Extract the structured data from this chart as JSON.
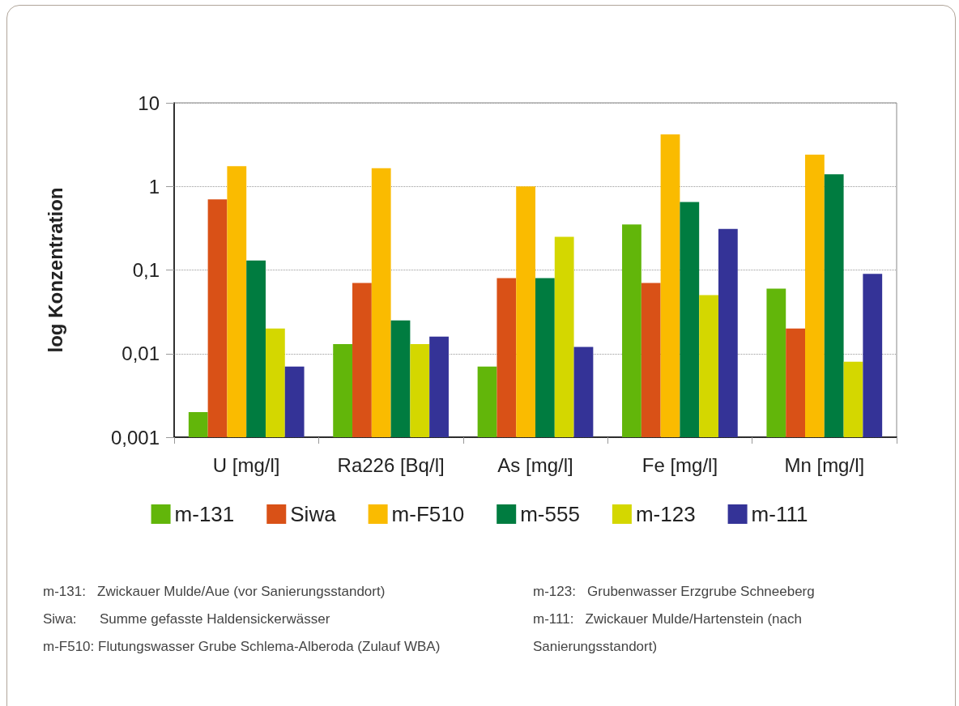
{
  "chart_data": {
    "type": "bar",
    "ylabel": "log Konzentration",
    "categories": [
      "U [mg/l]",
      "Ra226 [Bq/l]",
      "As [mg/l]",
      "Fe [mg/l]",
      "Mn [mg/l]"
    ],
    "series": [
      {
        "name": "m-131",
        "color": "#62b60a",
        "values": [
          0.002,
          0.013,
          0.007,
          0.35,
          0.06
        ]
      },
      {
        "name": "Siwa",
        "color": "#d95117",
        "values": [
          0.7,
          0.07,
          0.08,
          0.07,
          0.02
        ]
      },
      {
        "name": "m-F510",
        "color": "#fabb00",
        "values": [
          1.75,
          1.65,
          1.0,
          4.2,
          2.4
        ]
      },
      {
        "name": "m-555",
        "color": "#007c40",
        "values": [
          0.13,
          0.025,
          0.08,
          0.65,
          1.4
        ]
      },
      {
        "name": "m-123",
        "color": "#d4d700",
        "values": [
          0.02,
          0.013,
          0.25,
          0.05,
          0.008
        ]
      },
      {
        "name": "m-111",
        "color": "#343397",
        "values": [
          0.007,
          0.016,
          0.012,
          0.31,
          0.09
        ]
      }
    ],
    "log": true,
    "ylim": [
      0.001,
      10
    ],
    "yticks": [
      {
        "value": 0.001,
        "label": "0,001"
      },
      {
        "value": 0.01,
        "label": "0,01"
      },
      {
        "value": 0.1,
        "label": "0,1"
      },
      {
        "value": 1,
        "label": "1"
      },
      {
        "value": 10,
        "label": "10"
      }
    ],
    "grid": "y",
    "legend": "bottom",
    "annotations": [
      "m-131:   Zwickauer Mulde/Aue (vor Sanierungsstandort)",
      "Siwa:      Summe gefasste Haldensickerwässer",
      "m-F510: Flutungswasser Grube Schlema-Alberoda (Zulauf WBA)",
      "m-123:   Grubenwasser Erzgrube Schneeberg",
      "m-111:   Zwickauer Mulde/Hartenstein (nach Sanierungsstandort)"
    ]
  }
}
